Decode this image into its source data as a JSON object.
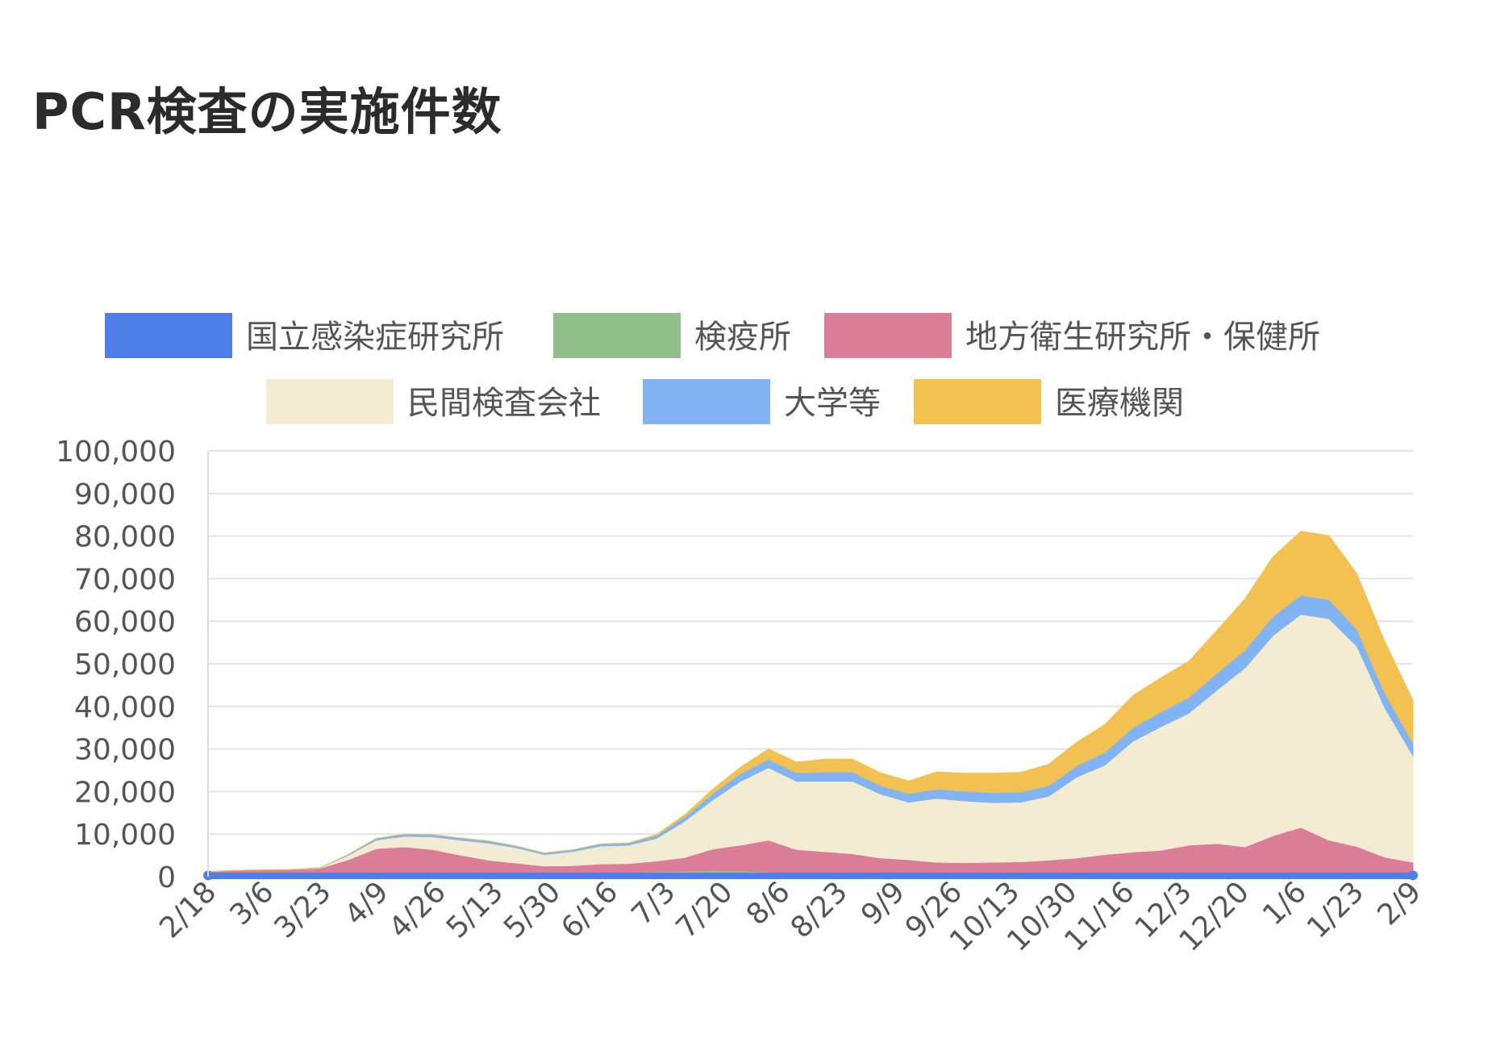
{
  "page": {
    "title": "PCR検査の実施件数"
  },
  "chart_data": {
    "type": "area",
    "stacked": true,
    "title": "",
    "xlabel": "",
    "ylabel": "",
    "ylim": [
      0,
      100000
    ],
    "y_ticks": [
      "0",
      "10,000",
      "20,000",
      "30,000",
      "40,000",
      "50,000",
      "60,000",
      "70,000",
      "80,000",
      "90,000",
      "100,000"
    ],
    "x_tick_labels": [
      "2/18",
      "3/6",
      "3/23",
      "4/9",
      "4/26",
      "5/13",
      "5/30",
      "6/16",
      "7/3",
      "7/20",
      "8/6",
      "8/23",
      "9/9",
      "9/26",
      "10/13",
      "10/30",
      "11/16",
      "12/3",
      "12/20",
      "1/6",
      "1/23",
      "2/9"
    ],
    "grid": true,
    "legend_position": "top",
    "x": [
      "2/18",
      "2/26",
      "3/6",
      "3/14",
      "3/23",
      "3/31",
      "4/9",
      "4/17",
      "4/26",
      "5/4",
      "5/13",
      "5/21",
      "5/30",
      "6/7",
      "6/16",
      "6/24",
      "7/3",
      "7/11",
      "7/20",
      "7/28",
      "8/6",
      "8/14",
      "8/23",
      "8/31",
      "9/9",
      "9/17",
      "9/26",
      "10/4",
      "10/13",
      "10/21",
      "10/30",
      "11/7",
      "11/16",
      "11/24",
      "12/3",
      "12/11",
      "12/20",
      "12/28",
      "1/6",
      "1/14",
      "1/23",
      "1/31",
      "2/9",
      "2/17"
    ],
    "series": [
      {
        "name": "国立感染症研究所",
        "color": "#4e7ee8",
        "values": [
          300,
          200,
          200,
          200,
          200,
          200,
          300,
          300,
          300,
          300,
          300,
          300,
          300,
          300,
          300,
          300,
          300,
          300,
          300,
          300,
          300,
          300,
          300,
          300,
          300,
          300,
          300,
          300,
          300,
          300,
          300,
          300,
          300,
          300,
          300,
          300,
          300,
          300,
          300,
          300,
          300,
          300,
          300,
          300
        ]
      },
      {
        "name": "検疫所",
        "color": "#92c08a",
        "values": [
          100,
          100,
          100,
          100,
          200,
          300,
          500,
          500,
          600,
          500,
          400,
          400,
          400,
          400,
          500,
          700,
          900,
          1000,
          1200,
          1100,
          800,
          300,
          300,
          300,
          300,
          300,
          300,
          300,
          300,
          300,
          300,
          300,
          300,
          300,
          300,
          300,
          300,
          300,
          300,
          300,
          300,
          300,
          300,
          300
        ]
      },
      {
        "name": "地方衛生研究所・保健所",
        "color": "#dc7d98",
        "values": [
          800,
          1200,
          1300,
          1400,
          1600,
          3500,
          5800,
          6200,
          5500,
          4300,
          3200,
          2500,
          1800,
          1900,
          2200,
          2100,
          2500,
          3200,
          5000,
          6000,
          7500,
          5800,
          5300,
          4800,
          3800,
          3400,
          2800,
          2700,
          2800,
          2900,
          3300,
          3800,
          4600,
          5200,
          5600,
          6800,
          7200,
          6400,
          9000,
          11000,
          8000,
          6500,
          4000,
          2800
        ]
      },
      {
        "name": "民間検査会社",
        "color": "#f3ecd3",
        "values": [
          0,
          0,
          0,
          0,
          100,
          1000,
          2000,
          2500,
          3000,
          3500,
          4000,
          3600,
          2700,
          3300,
          4200,
          4300,
          5300,
          8500,
          11500,
          15000,
          17000,
          16000,
          16500,
          17000,
          15000,
          13500,
          15000,
          14500,
          14000,
          14000,
          15000,
          19000,
          21000,
          26000,
          29000,
          31000,
          36000,
          42000,
          47000,
          50000,
          52000,
          47000,
          35000,
          25000
        ]
      },
      {
        "name": "大学等",
        "color": "#82b4f4",
        "values": [
          0,
          0,
          0,
          0,
          0,
          200,
          400,
          500,
          500,
          500,
          500,
          400,
          400,
          400,
          500,
          500,
          700,
          1000,
          1500,
          1800,
          2000,
          2000,
          2200,
          2200,
          2000,
          2000,
          2200,
          2300,
          2400,
          2400,
          2500,
          2700,
          3000,
          3200,
          3500,
          3700,
          4000,
          4200,
          4500,
          4500,
          4500,
          4000,
          3500,
          3000
        ]
      },
      {
        "name": "医療機関",
        "color": "#f3c151",
        "values": [
          0,
          0,
          0,
          0,
          0,
          0,
          0,
          0,
          0,
          0,
          0,
          0,
          0,
          0,
          0,
          0,
          200,
          500,
          1000,
          1500,
          2400,
          2500,
          3000,
          3000,
          3000,
          3000,
          4000,
          4200,
          4500,
          4600,
          5000,
          5500,
          6500,
          7500,
          8000,
          8500,
          10000,
          12000,
          14000,
          15000,
          15000,
          13000,
          12000,
          10000
        ]
      }
    ]
  }
}
